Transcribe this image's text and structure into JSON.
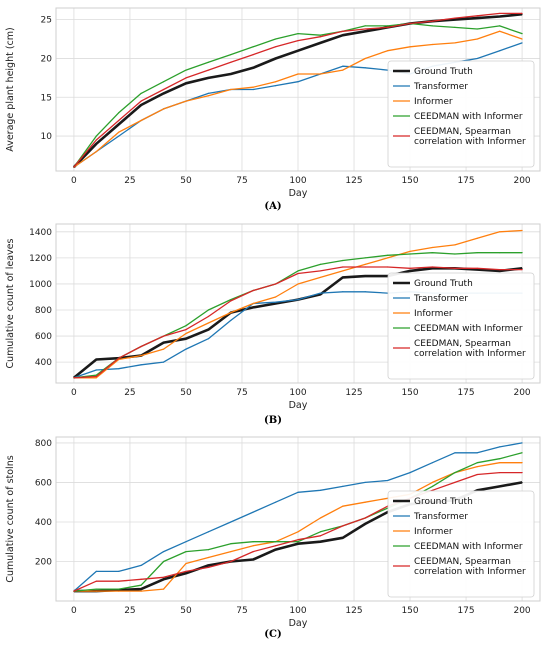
{
  "colors": {
    "ground_truth": "#1a1a1a",
    "transformer": "#1f77b4",
    "informer": "#ff7f0e",
    "ceedman": "#2ca02c",
    "ceedman_spearman": "#d62728",
    "grid": "#dcdcdc"
  },
  "chart_data": [
    {
      "type": "line",
      "caption": "(A)",
      "xlabel": "Day",
      "ylabel": "Average plant height (cm)",
      "xlim": [
        -8,
        208
      ],
      "ylim": [
        5.5,
        26.5
      ],
      "xticks": [
        0,
        25,
        50,
        75,
        100,
        125,
        150,
        175,
        200
      ],
      "yticks": [
        10,
        15,
        20,
        25
      ],
      "grid": true,
      "legend_position": "lower-right",
      "series": [
        {
          "key": "ground_truth",
          "name": "Ground Truth",
          "width": 2.6,
          "x": [
            0,
            10,
            20,
            30,
            40,
            50,
            60,
            70,
            80,
            90,
            100,
            110,
            120,
            130,
            140,
            150,
            160,
            170,
            180,
            190,
            200
          ],
          "y": [
            6,
            9,
            11.5,
            14,
            15.5,
            16.8,
            17.5,
            18,
            18.8,
            20,
            21,
            22,
            23,
            23.5,
            24,
            24.5,
            24.8,
            25,
            25.2,
            25.4,
            25.7
          ]
        },
        {
          "key": "transformer",
          "name": "Transformer",
          "width": 1.3,
          "x": [
            0,
            10,
            20,
            30,
            40,
            50,
            60,
            70,
            80,
            90,
            100,
            110,
            120,
            130,
            140,
            150,
            160,
            170,
            180,
            190,
            200
          ],
          "y": [
            6,
            8,
            10,
            12,
            13.5,
            14.5,
            15.5,
            16,
            16,
            16.5,
            17,
            18,
            19,
            18.8,
            18.5,
            18,
            19,
            19.5,
            20,
            21,
            22
          ]
        },
        {
          "key": "informer",
          "name": "Informer",
          "width": 1.3,
          "x": [
            0,
            10,
            20,
            30,
            40,
            50,
            60,
            70,
            80,
            90,
            100,
            110,
            120,
            130,
            140,
            150,
            160,
            170,
            180,
            190,
            200
          ],
          "y": [
            6,
            8,
            10.5,
            12,
            13.5,
            14.5,
            15.2,
            16,
            16.3,
            17,
            18,
            18,
            18.5,
            20,
            21,
            21.5,
            21.8,
            22,
            22.5,
            23.5,
            22.5
          ]
        },
        {
          "key": "ceedman",
          "name": "CEEDMAN with Informer",
          "width": 1.3,
          "x": [
            0,
            10,
            20,
            30,
            40,
            50,
            60,
            70,
            80,
            90,
            100,
            110,
            120,
            130,
            140,
            150,
            160,
            170,
            180,
            190,
            200
          ],
          "y": [
            6,
            10,
            13,
            15.5,
            17,
            18.5,
            19.5,
            20.5,
            21.5,
            22.5,
            23.2,
            23,
            23.5,
            24.2,
            24.2,
            24.5,
            24.2,
            24,
            23.8,
            24.2,
            23.2
          ]
        },
        {
          "key": "ceedman_spearman",
          "name": "CEEDMAN, Spearman correlation with Informer",
          "width": 1.3,
          "x": [
            0,
            10,
            20,
            30,
            40,
            50,
            60,
            70,
            80,
            90,
            100,
            110,
            120,
            130,
            140,
            150,
            160,
            170,
            180,
            190,
            200
          ],
          "y": [
            6,
            9.5,
            12,
            14.5,
            16,
            17.5,
            18.5,
            19.5,
            20.5,
            21.5,
            22.3,
            22.8,
            23.5,
            23.8,
            24,
            24.5,
            24.8,
            25.2,
            25.5,
            25.8,
            25.8
          ]
        }
      ]
    },
    {
      "type": "line",
      "caption": "(B)",
      "xlabel": "Day",
      "ylabel": "Cumulative count of leaves",
      "xlim": [
        -8,
        208
      ],
      "ylim": [
        240,
        1460
      ],
      "xticks": [
        0,
        25,
        50,
        75,
        100,
        125,
        150,
        175,
        200
      ],
      "yticks": [
        400,
        600,
        800,
        1000,
        1200,
        1400
      ],
      "grid": true,
      "legend_position": "lower-right",
      "series": [
        {
          "key": "ground_truth",
          "name": "Ground Truth",
          "width": 2.6,
          "x": [
            0,
            10,
            20,
            30,
            40,
            50,
            60,
            70,
            80,
            90,
            100,
            110,
            120,
            130,
            140,
            150,
            160,
            170,
            180,
            190,
            200
          ],
          "y": [
            280,
            420,
            430,
            450,
            550,
            580,
            650,
            780,
            820,
            850,
            880,
            920,
            1050,
            1060,
            1060,
            1100,
            1120,
            1120,
            1110,
            1100,
            1120
          ]
        },
        {
          "key": "transformer",
          "name": "Transformer",
          "width": 1.3,
          "x": [
            0,
            10,
            20,
            30,
            40,
            50,
            60,
            70,
            80,
            90,
            100,
            110,
            120,
            130,
            140,
            150,
            160,
            170,
            180,
            190,
            200
          ],
          "y": [
            280,
            340,
            350,
            380,
            400,
            500,
            580,
            720,
            850,
            860,
            880,
            930,
            940,
            940,
            930,
            940,
            930,
            930,
            930,
            930,
            930
          ]
        },
        {
          "key": "informer",
          "name": "Informer",
          "width": 1.3,
          "x": [
            0,
            10,
            20,
            30,
            40,
            50,
            60,
            70,
            80,
            90,
            100,
            110,
            120,
            130,
            140,
            150,
            160,
            170,
            180,
            190,
            200
          ],
          "y": [
            280,
            280,
            420,
            450,
            500,
            620,
            700,
            780,
            850,
            900,
            1000,
            1050,
            1100,
            1150,
            1200,
            1250,
            1280,
            1300,
            1350,
            1400,
            1410
          ]
        },
        {
          "key": "ceedman",
          "name": "CEEDMAN with Informer",
          "width": 1.3,
          "x": [
            0,
            10,
            20,
            30,
            40,
            50,
            60,
            70,
            80,
            90,
            100,
            110,
            120,
            130,
            140,
            150,
            160,
            170,
            180,
            190,
            200
          ],
          "y": [
            280,
            300,
            430,
            520,
            600,
            680,
            800,
            880,
            950,
            1000,
            1100,
            1150,
            1180,
            1200,
            1220,
            1230,
            1240,
            1230,
            1240,
            1240,
            1240
          ]
        },
        {
          "key": "ceedman_spearman",
          "name": "CEEDMAN, Spearman correlation with Informer",
          "width": 1.3,
          "x": [
            0,
            10,
            20,
            30,
            40,
            50,
            60,
            70,
            80,
            90,
            100,
            110,
            120,
            130,
            140,
            150,
            160,
            170,
            180,
            190,
            200
          ],
          "y": [
            280,
            290,
            430,
            520,
            600,
            650,
            750,
            870,
            950,
            1000,
            1080,
            1100,
            1130,
            1130,
            1130,
            1120,
            1130,
            1120,
            1120,
            1110,
            1110
          ]
        }
      ]
    },
    {
      "type": "line",
      "caption": "(C)",
      "xlabel": "Day",
      "ylabel": "Cumulative count of stolns",
      "xlim": [
        -8,
        208
      ],
      "ylim": [
        0,
        830
      ],
      "xticks": [
        0,
        25,
        50,
        75,
        100,
        125,
        150,
        175,
        200
      ],
      "yticks": [
        200,
        400,
        600,
        800
      ],
      "grid": true,
      "legend_position": "lower-right",
      "series": [
        {
          "key": "ground_truth",
          "name": "Ground Truth",
          "width": 2.6,
          "x": [
            0,
            10,
            20,
            30,
            40,
            50,
            60,
            70,
            80,
            90,
            100,
            110,
            120,
            130,
            140,
            150,
            160,
            170,
            180,
            190,
            200
          ],
          "y": [
            50,
            50,
            55,
            60,
            110,
            140,
            180,
            200,
            210,
            260,
            290,
            300,
            320,
            390,
            450,
            490,
            500,
            510,
            560,
            580,
            600
          ]
        },
        {
          "key": "transformer",
          "name": "Transformer",
          "width": 1.3,
          "x": [
            0,
            10,
            20,
            30,
            40,
            50,
            60,
            70,
            80,
            90,
            100,
            110,
            120,
            130,
            140,
            150,
            160,
            170,
            180,
            190,
            200
          ],
          "y": [
            50,
            150,
            150,
            180,
            250,
            300,
            350,
            400,
            450,
            500,
            550,
            560,
            580,
            600,
            610,
            650,
            700,
            750,
            750,
            780,
            800
          ]
        },
        {
          "key": "informer",
          "name": "Informer",
          "width": 1.3,
          "x": [
            0,
            10,
            20,
            30,
            40,
            50,
            60,
            70,
            80,
            90,
            100,
            110,
            120,
            130,
            140,
            150,
            160,
            170,
            180,
            190,
            200
          ],
          "y": [
            50,
            50,
            50,
            50,
            60,
            190,
            220,
            250,
            280,
            300,
            350,
            420,
            480,
            500,
            520,
            540,
            600,
            650,
            680,
            700,
            700
          ]
        },
        {
          "key": "ceedman",
          "name": "CEEDMAN with Informer",
          "width": 1.3,
          "x": [
            0,
            10,
            20,
            30,
            40,
            50,
            60,
            70,
            80,
            90,
            100,
            110,
            120,
            130,
            140,
            150,
            160,
            170,
            180,
            190,
            200
          ],
          "y": [
            50,
            60,
            60,
            80,
            200,
            250,
            260,
            290,
            300,
            300,
            300,
            350,
            380,
            420,
            470,
            520,
            580,
            650,
            700,
            720,
            750
          ]
        },
        {
          "key": "ceedman_spearman",
          "name": "CEEDMAN, Spearman correlation with Informer",
          "width": 1.3,
          "x": [
            0,
            10,
            20,
            30,
            40,
            50,
            60,
            70,
            80,
            90,
            100,
            110,
            120,
            130,
            140,
            150,
            160,
            170,
            180,
            190,
            200
          ],
          "y": [
            50,
            100,
            100,
            110,
            120,
            150,
            170,
            200,
            250,
            280,
            310,
            330,
            380,
            420,
            480,
            520,
            560,
            600,
            640,
            650,
            650
          ]
        }
      ]
    }
  ]
}
